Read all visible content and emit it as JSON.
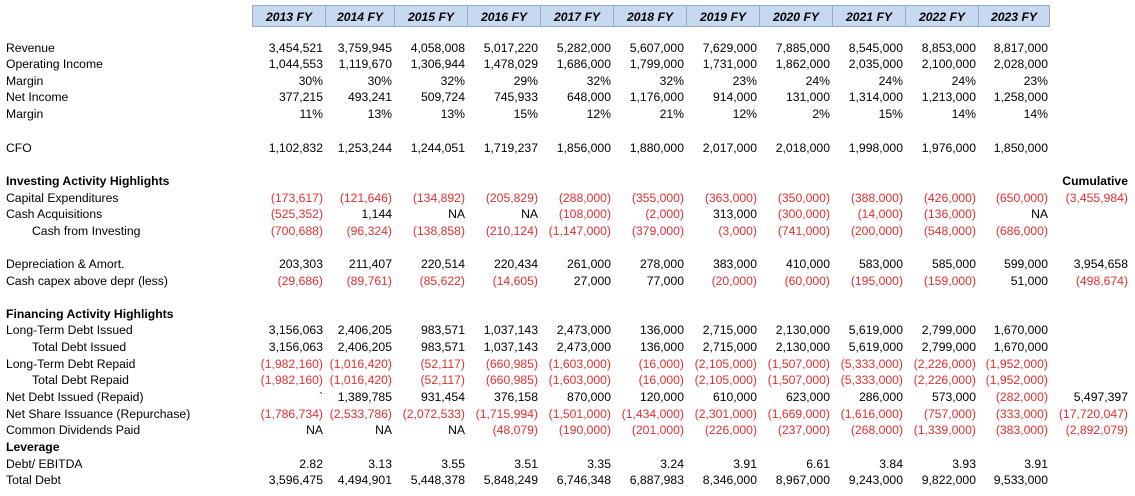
{
  "columns": [
    "2013 FY",
    "2014 FY",
    "2015 FY",
    "2016 FY",
    "2017 FY",
    "2018 FY",
    "2019 FY",
    "2020 FY",
    "2021 FY",
    "2022 FY",
    "2023 FY"
  ],
  "cumulative_header": "Cumulative",
  "colors": {
    "negative": "#e03030",
    "header_bg": "#c6d9f1"
  },
  "rows": [
    {
      "label": "Revenue",
      "values": [
        "3,454,521",
        "3,759,945",
        "4,058,008",
        "5,017,220",
        "5,282,000",
        "5,607,000",
        "7,629,000",
        "7,885,000",
        "8,545,000",
        "8,853,000",
        "8,817,000"
      ]
    },
    {
      "label": "Operating Income",
      "values": [
        "1,044,553",
        "1,119,670",
        "1,306,944",
        "1,478,029",
        "1,686,000",
        "1,799,000",
        "1,731,000",
        "1,862,000",
        "2,035,000",
        "2,100,000",
        "2,028,000"
      ]
    },
    {
      "label": "Margin",
      "values": [
        "30%",
        "30%",
        "32%",
        "29%",
        "32%",
        "32%",
        "23%",
        "24%",
        "24%",
        "24%",
        "23%"
      ]
    },
    {
      "label": "Net Income",
      "values": [
        "377,215",
        "493,241",
        "509,724",
        "745,933",
        "648,000",
        "1,176,000",
        "914,000",
        "131,000",
        "1,314,000",
        "1,213,000",
        "1,258,000"
      ]
    },
    {
      "label": "Margin",
      "values": [
        "11%",
        "13%",
        "13%",
        "15%",
        "12%",
        "21%",
        "12%",
        "2%",
        "15%",
        "14%",
        "14%"
      ]
    },
    {
      "label": "",
      "values": []
    },
    {
      "label": "CFO",
      "values": [
        "1,102,832",
        "1,253,244",
        "1,244,051",
        "1,719,237",
        "1,856,000",
        "1,880,000",
        "2,017,000",
        "2,018,000",
        "1,998,000",
        "1,976,000",
        "1,850,000"
      ]
    },
    {
      "label": "",
      "values": []
    },
    {
      "label": "Investing Activity Highlights",
      "bold": true,
      "values": [],
      "cumulative": "Cumulative",
      "cumBold": true
    },
    {
      "label": "Capital Expenditures",
      "values": [
        "(173,617)",
        "(121,646)",
        "(134,892)",
        "(205,829)",
        "(288,000)",
        "(355,000)",
        "(363,000)",
        "(350,000)",
        "(388,000)",
        "(426,000)",
        "(650,000)"
      ],
      "cumulative": "(3,455,984)"
    },
    {
      "label": "Cash Acquisitions",
      "values": [
        "(525,352)",
        "1,144",
        "NA",
        "NA",
        "(108,000)",
        "(2,000)",
        "313,000",
        "(300,000)",
        "(14,000)",
        "(136,000)",
        "NA"
      ]
    },
    {
      "label": "Cash from Investing",
      "indent": true,
      "values": [
        "(700,688)",
        "(96,324)",
        "(138,858)",
        "(210,124)",
        "(1,147,000)",
        "(379,000)",
        "(3,000)",
        "(741,000)",
        "(200,000)",
        "(548,000)",
        "(686,000)"
      ]
    },
    {
      "label": "",
      "values": []
    },
    {
      "label": "Depreciation & Amort.",
      "values": [
        "203,303",
        "211,407",
        "220,514",
        "220,434",
        "261,000",
        "278,000",
        "383,000",
        "410,000",
        "583,000",
        "585,000",
        "599,000"
      ],
      "cumulative": "3,954,658"
    },
    {
      "label": "Cash capex above depr (less)",
      "values": [
        "(29,686)",
        "(89,761)",
        "(85,622)",
        "(14,605)",
        "27,000",
        "77,000",
        "(20,000)",
        "(60,000)",
        "(195,000)",
        "(159,000)",
        "51,000"
      ],
      "cumulative": "(498,674)"
    },
    {
      "label": "",
      "values": []
    },
    {
      "label": "Financing Activity Highlights",
      "bold": true,
      "values": []
    },
    {
      "label": "Long-Term Debt Issued",
      "values": [
        "3,156,063",
        "2,406,205",
        "983,571",
        "1,037,143",
        "2,473,000",
        "136,000",
        "2,715,000",
        "2,130,000",
        "5,619,000",
        "2,799,000",
        "1,670,000"
      ]
    },
    {
      "label": "Total Debt Issued",
      "indent": true,
      "values": [
        "3,156,063",
        "2,406,205",
        "983,571",
        "1,037,143",
        "2,473,000",
        "136,000",
        "2,715,000",
        "2,130,000",
        "5,619,000",
        "2,799,000",
        "1,670,000"
      ]
    },
    {
      "label": "Long-Term Debt Repaid",
      "values": [
        "(1,982,160)",
        "(1,016,420)",
        "(52,117)",
        "(660,985)",
        "(1,603,000)",
        "(16,000)",
        "(2,105,000)",
        "(1,507,000)",
        "(5,333,000)",
        "(2,226,000)",
        "(1,952,000)"
      ]
    },
    {
      "label": "Total Debt Repaid",
      "indent": true,
      "values": [
        "(1,982,160)",
        "(1,016,420)",
        "(52,117)",
        "(660,985)",
        "(1,603,000)",
        "(16,000)",
        "(2,105,000)",
        "(1,507,000)",
        "(5,333,000)",
        "(2,226,000)",
        "(1,952,000)"
      ]
    },
    {
      "label": "Net Debt Issued (Repaid)",
      "values": [
        "`",
        "1,389,785",
        "931,454",
        "376,158",
        "870,000",
        "120,000",
        "610,000",
        "623,000",
        "286,000",
        "573,000",
        "(282,000)"
      ],
      "cumulative": "5,497,397"
    },
    {
      "label": "Net Share Issuance (Repurchase)",
      "values": [
        "(1,786,734)",
        "(2,533,786)",
        "(2,072,533)",
        "(1,715,994)",
        "(1,501,000)",
        "(1,434,000)",
        "(2,301,000)",
        "(1,669,000)",
        "(1,616,000)",
        "(757,000)",
        "(333,000)"
      ],
      "cumulative": "(17,720,047)"
    },
    {
      "label": "Common Dividends Paid",
      "values": [
        "NA",
        "NA",
        "NA",
        "(48,079)",
        "(190,000)",
        "(201,000)",
        "(226,000)",
        "(237,000)",
        "(268,000)",
        "(1,339,000)",
        "(383,000)"
      ],
      "cumulative": "(2,892,079)"
    },
    {
      "label": "Leverage",
      "bold": true,
      "values": []
    },
    {
      "label": "Debt/ EBITDA",
      "values": [
        "2.82",
        "3.13",
        "3.55",
        "3.51",
        "3.35",
        "3.24",
        "3.91",
        "6.61",
        "3.84",
        "3.93",
        "3.91"
      ]
    },
    {
      "label": "Total Debt",
      "values": [
        "3,596,475",
        "4,494,901",
        "5,448,378",
        "5,848,249",
        "6,746,348",
        "6,887,983",
        "8,346,000",
        "8,967,000",
        "9,243,000",
        "9,822,000",
        "9,533,000"
      ]
    }
  ]
}
